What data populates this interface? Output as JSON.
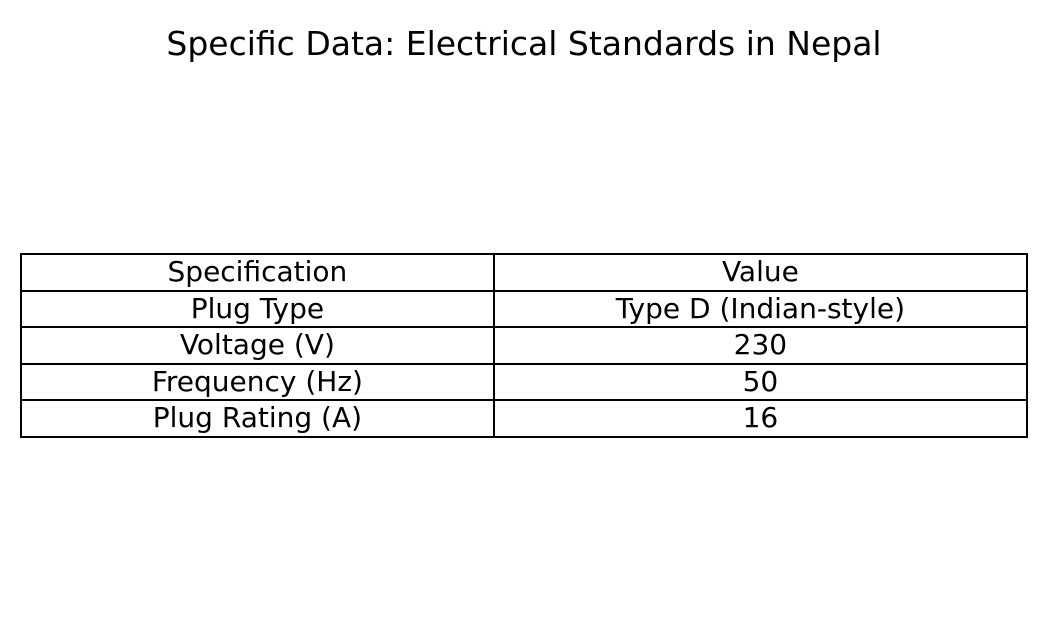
{
  "title": "Specific Data: Electrical Standards in Nepal",
  "table": {
    "type": "table",
    "columns": [
      "Specification",
      "Value"
    ],
    "rows": [
      [
        "Plug Type",
        "Type D (Indian-style)"
      ],
      [
        "Voltage (V)",
        "230"
      ],
      [
        "Frequency (Hz)",
        "50"
      ],
      [
        "Plug Rating (A)",
        "16"
      ]
    ],
    "border_color": "#000000",
    "border_width": 2,
    "background_color": "#ffffff",
    "text_color": "#000000",
    "header_fontsize": 28,
    "cell_fontsize": 28,
    "title_fontsize": 33,
    "col_widths_pct": [
      47,
      53
    ],
    "alignment": "center"
  }
}
